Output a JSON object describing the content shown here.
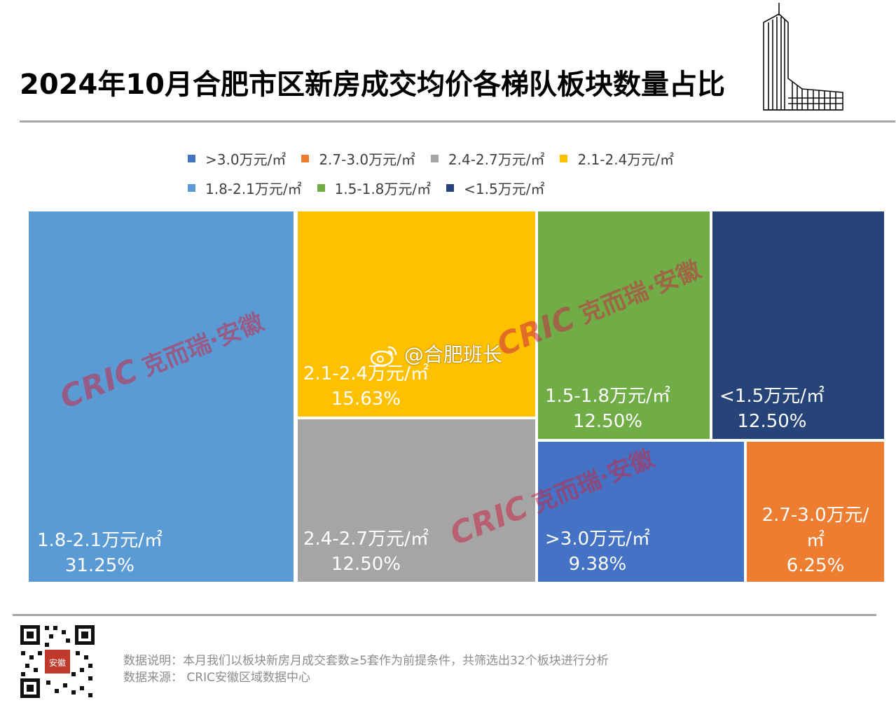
{
  "title": "2024年10月合肥市区新房成交均价各梯队板块数量占比",
  "legend": [
    {
      "label": ">3.0万元/㎡",
      "color": "#4472c4"
    },
    {
      "label": "2.7-3.0万元/㎡",
      "color": "#ed7d31"
    },
    {
      "label": "2.4-2.7万元/㎡",
      "color": "#a5a5a5"
    },
    {
      "label": "2.1-2.4万元/㎡",
      "color": "#ffc000"
    },
    {
      "label": "1.8-2.1万元/㎡",
      "color": "#5b9bd5"
    },
    {
      "label": "1.5-1.8万元/㎡",
      "color": "#70ad47"
    },
    {
      "label": "<1.5万元/㎡",
      "color": "#264478"
    }
  ],
  "chart_data": {
    "type": "treemap",
    "title": "2024年10月合肥市区新房成交均价各梯队板块数量占比",
    "unit": "%",
    "items": [
      {
        "label": "1.8-2.1万元/㎡",
        "label_lines": [
          "1.8-2.1万元/㎡"
        ],
        "value": 31.25,
        "value_text": "31.25%",
        "color": "#5b9bd5"
      },
      {
        "label": "2.1-2.4万元/㎡",
        "label_lines": [
          "2.1-2.4万元/㎡"
        ],
        "value": 15.63,
        "value_text": "15.63%",
        "color": "#ffc000"
      },
      {
        "label": "2.4-2.7万元/㎡",
        "label_lines": [
          "2.4-2.7万元/㎡"
        ],
        "value": 12.5,
        "value_text": "12.50%",
        "color": "#a5a5a5"
      },
      {
        "label": "1.5-1.8万元/㎡",
        "label_lines": [
          "1.5-1.8万元/㎡"
        ],
        "value": 12.5,
        "value_text": "12.50%",
        "color": "#70ad47"
      },
      {
        "label": "<1.5万元/㎡",
        "label_lines": [
          "<1.5万元/㎡"
        ],
        "value": 12.5,
        "value_text": "12.50%",
        "color": "#264478"
      },
      {
        "label": ">3.0万元/㎡",
        "label_lines": [
          ">3.0万元/㎡"
        ],
        "value": 9.38,
        "value_text": "9.38%",
        "color": "#4472c4"
      },
      {
        "label": "2.7-3.0万元/㎡",
        "label_lines": [
          "2.7-3.0万元/",
          "㎡"
        ],
        "value": 6.25,
        "value_text": "6.25%",
        "color": "#ed7d31"
      }
    ]
  },
  "watermark": {
    "brand": "CRIC",
    "name": "克而瑞·安徽"
  },
  "weibo_handle": "@合肥班长",
  "footer": {
    "note": "数据说明：本月我们以板块新房月成交套数≥5套作为前提条件，共筛选出32个板块进行分析",
    "source": "数据来源： CRIC安徽区域数据中心",
    "qr_badge": "安徽"
  }
}
